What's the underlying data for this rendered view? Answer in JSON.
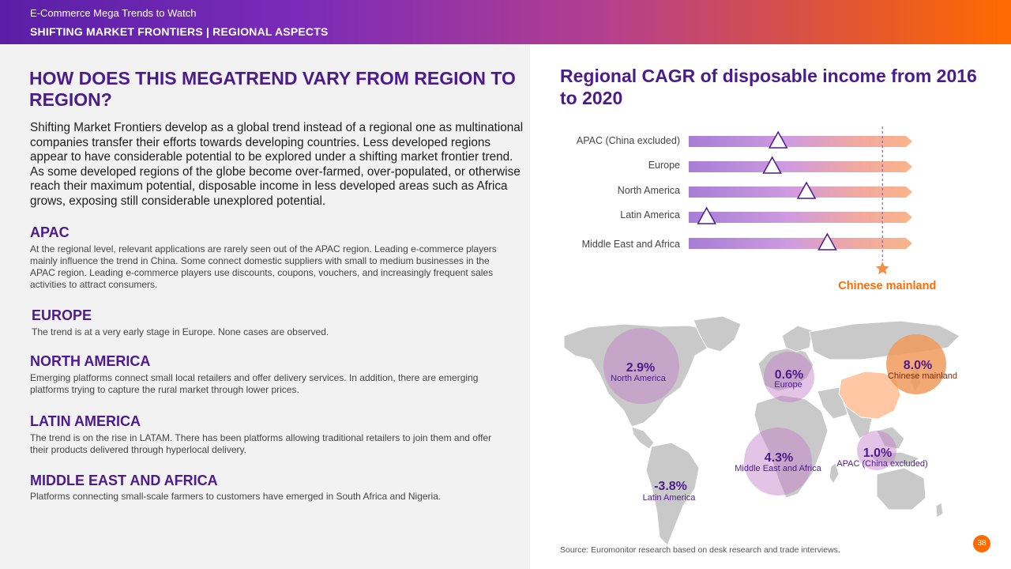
{
  "header": {
    "supertitle": "E-Commerce Mega Trends to Watch",
    "title": "SHIFTING MARKET FRONTIERS | REGIONAL ASPECTS"
  },
  "left": {
    "question": "HOW DOES THIS MEGATREND VARY FROM REGION TO REGION?",
    "intro": "Shifting Market Frontiers develop as a global trend instead of a regional one as multinational companies transfer their efforts towards developing countries. Less developed regions appear to have considerable potential to be explored under a shifting market frontier trend. As some developed regions of the globe become over-farmed, over-populated, or otherwise reach their maximum potential, disposable income in less developed areas such as Africa grows, exposing still considerable unexplored potential.",
    "regions": [
      {
        "heading": "APAC",
        "text": "At the regional level, relevant applications are rarely seen out of the APAC region. Leading e-commerce players mainly influence the trend in China. Some connect domestic suppliers with small to medium businesses in the APAC region. Leading e-commerce players use discounts, coupons, vouchers, and increasingly frequent sales activities to attract consumers."
      },
      {
        "heading": "EUROPE",
        "text": "The trend is at a very early stage in Europe. None cases are observed."
      },
      {
        "heading": "NORTH AMERICA",
        "text": "Emerging platforms connect small local retailers and offer delivery services. In addition, there are emerging platforms trying to capture the rural market through lower prices."
      },
      {
        "heading": "LATIN AMERICA",
        "text": "The trend is on the rise in LATAM. There has been platforms allowing traditional retailers to join them and offer their products delivered through hyperlocal delivery."
      },
      {
        "heading": "MIDDLE EAST AND AFRICA",
        "text": "Platforms connecting small-scale farmers to customers have emerged in South Africa and Nigeria."
      }
    ]
  },
  "chart_data": {
    "type": "bar",
    "title": "Regional CAGR of disposable income from 2016 to 2020",
    "categories": [
      "APAC (China excluded)",
      "Europe",
      "North America",
      "Latin America",
      "Middle East and Africa"
    ],
    "values": [
      1.0,
      0.6,
      2.9,
      -3.8,
      4.3
    ],
    "reference": {
      "label": "Chinese mainland",
      "value": 8.0
    },
    "xlim": [
      -5,
      10
    ],
    "map_labels": [
      {
        "value": "2.9%",
        "region": "North America"
      },
      {
        "value": "0.6%",
        "region": "Europe"
      },
      {
        "value": "8.0%",
        "region": "Chinese mainland"
      },
      {
        "value": "4.3%",
        "region": "Middle East and Africa"
      },
      {
        "value": "1.0%",
        "region": "APAC (China excluded)"
      },
      {
        "value": "-3.8%",
        "region": "Latin America"
      }
    ]
  },
  "footer": {
    "source": "Source: Euromonitor research based on desk research and trade interviews.",
    "page": "38"
  },
  "colors": {
    "accent_purple": "#4b1a8c",
    "accent_orange": "#ff6b00"
  }
}
